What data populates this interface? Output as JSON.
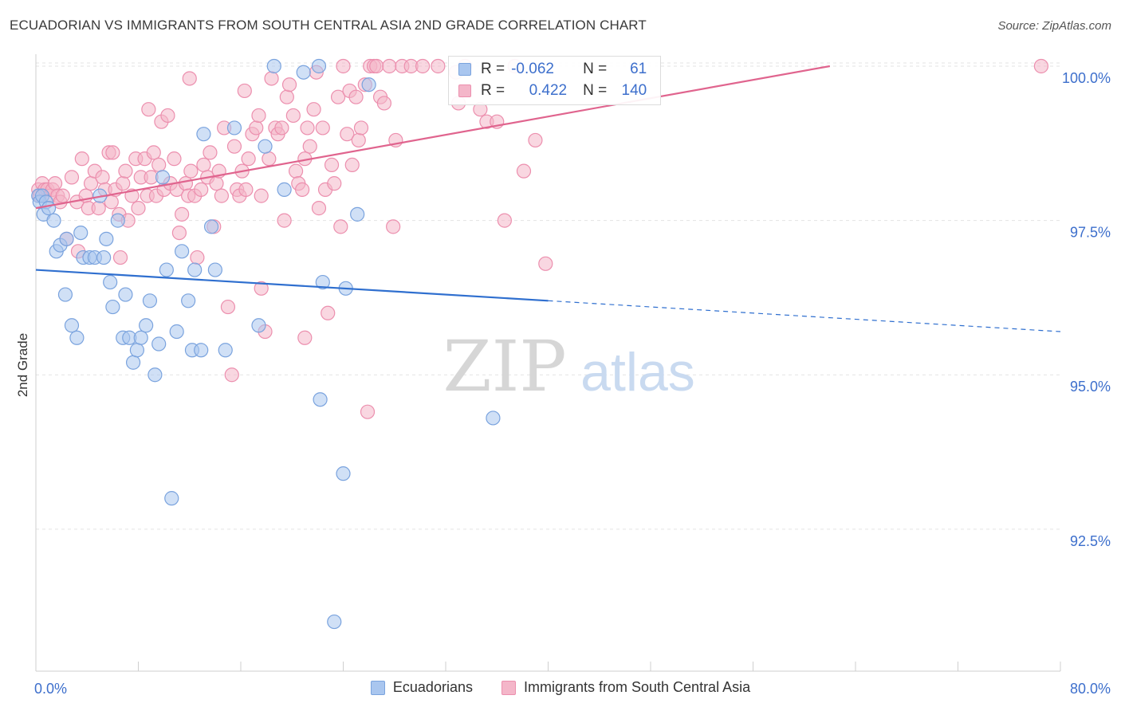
{
  "title": "ECUADORIAN VS IMMIGRANTS FROM SOUTH CENTRAL ASIA 2ND GRADE CORRELATION CHART",
  "source": "Source: ZipAtlas.com",
  "watermark": {
    "zip": "ZIP",
    "atlas": "atlas"
  },
  "colors": {
    "blue_fill": "#a9c6ef",
    "blue_stroke": "#7aa3de",
    "blue_line": "#2f6fcf",
    "pink_fill": "#f4b6c9",
    "pink_stroke": "#ec8fae",
    "pink_line": "#e0648e",
    "axis_label": "#3d6fcc",
    "grid": "#e3e3e3"
  },
  "legend_top": {
    "rows": [
      {
        "series": "Ecuadorians",
        "r_label": "R =",
        "r_value": "-0.062",
        "n_label": "N =",
        "n_value": "61"
      },
      {
        "series": "Immigrants from South Central Asia",
        "r_label": "R =",
        "r_value": "0.422",
        "n_label": "N =",
        "n_value": "140"
      }
    ]
  },
  "legend_bottom": [
    "Ecuadorians",
    "Immigrants from South Central Asia"
  ],
  "chart_data": {
    "type": "scatter",
    "title": "ECUADORIAN VS IMMIGRANTS FROM SOUTH CENTRAL ASIA 2ND GRADE CORRELATION CHART",
    "xlabel": "",
    "ylabel": "2nd Grade",
    "xlim": [
      0,
      80
    ],
    "ylim": [
      90.2,
      100.4
    ],
    "x_tick_labels": [
      "0.0%",
      "80.0%"
    ],
    "y_ticks": [
      92.5,
      95.0,
      97.5,
      100.0
    ],
    "y_tick_labels": [
      "92.5%",
      "95.0%",
      "97.5%",
      "100.0%"
    ],
    "grid": true,
    "legend_position": "bottom",
    "series": [
      {
        "name": "Ecuadorians",
        "trend": {
          "x": [
            0,
            40
          ],
          "y": [
            96.7,
            96.2
          ],
          "dashed_to": [
            80,
            95.7
          ]
        },
        "points": [
          [
            0.2,
            97.9
          ],
          [
            0.3,
            97.8
          ],
          [
            0.5,
            97.9
          ],
          [
            0.6,
            97.6
          ],
          [
            0.8,
            97.8
          ],
          [
            1.0,
            97.7
          ],
          [
            1.4,
            97.5
          ],
          [
            1.6,
            97.0
          ],
          [
            1.9,
            97.1
          ],
          [
            2.4,
            97.2
          ],
          [
            2.3,
            96.3
          ],
          [
            2.8,
            95.8
          ],
          [
            3.2,
            95.6
          ],
          [
            3.5,
            97.3
          ],
          [
            3.7,
            96.9
          ],
          [
            4.2,
            96.9
          ],
          [
            4.6,
            96.9
          ],
          [
            5.0,
            97.9
          ],
          [
            5.3,
            96.9
          ],
          [
            5.5,
            97.2
          ],
          [
            5.8,
            96.5
          ],
          [
            6.0,
            96.1
          ],
          [
            6.4,
            97.5
          ],
          [
            6.8,
            95.6
          ],
          [
            7.0,
            96.3
          ],
          [
            7.3,
            95.6
          ],
          [
            7.6,
            95.2
          ],
          [
            7.9,
            95.4
          ],
          [
            8.2,
            95.6
          ],
          [
            8.6,
            95.8
          ],
          [
            8.9,
            96.2
          ],
          [
            9.3,
            95.0
          ],
          [
            9.6,
            95.5
          ],
          [
            9.9,
            98.2
          ],
          [
            10.2,
            96.7
          ],
          [
            10.6,
            93.0
          ],
          [
            11.0,
            95.7
          ],
          [
            11.4,
            97.0
          ],
          [
            11.9,
            96.2
          ],
          [
            12.2,
            95.4
          ],
          [
            12.4,
            96.7
          ],
          [
            12.9,
            95.4
          ],
          [
            13.1,
            98.9
          ],
          [
            13.7,
            97.4
          ],
          [
            14.0,
            96.7
          ],
          [
            14.8,
            95.4
          ],
          [
            15.5,
            99.0
          ],
          [
            17.4,
            95.8
          ],
          [
            17.9,
            98.7
          ],
          [
            18.6,
            100.0
          ],
          [
            19.4,
            98.0
          ],
          [
            20.9,
            99.9
          ],
          [
            22.1,
            100.0
          ],
          [
            22.4,
            96.5
          ],
          [
            22.2,
            94.6
          ],
          [
            23.3,
            91.0
          ],
          [
            24.0,
            93.4
          ],
          [
            24.2,
            96.4
          ],
          [
            25.1,
            97.6
          ],
          [
            26.0,
            99.7
          ],
          [
            35.7,
            94.3
          ]
        ]
      },
      {
        "name": "Immigrants from South Central Asia",
        "trend": {
          "x": [
            0,
            62
          ],
          "y": [
            97.7,
            100.0
          ]
        },
        "points": [
          [
            0.2,
            98.0
          ],
          [
            0.3,
            97.9
          ],
          [
            0.5,
            98.1
          ],
          [
            0.7,
            98.0
          ],
          [
            0.9,
            98.0
          ],
          [
            1.1,
            97.9
          ],
          [
            1.3,
            98.0
          ],
          [
            1.5,
            98.1
          ],
          [
            1.7,
            97.9
          ],
          [
            1.9,
            97.8
          ],
          [
            2.1,
            97.9
          ],
          [
            2.4,
            97.2
          ],
          [
            2.8,
            98.2
          ],
          [
            3.2,
            97.8
          ],
          [
            3.3,
            97.0
          ],
          [
            3.6,
            98.5
          ],
          [
            3.9,
            97.9
          ],
          [
            4.1,
            97.7
          ],
          [
            4.3,
            98.1
          ],
          [
            4.6,
            98.3
          ],
          [
            4.9,
            97.7
          ],
          [
            5.2,
            98.2
          ],
          [
            5.4,
            98.0
          ],
          [
            5.7,
            98.6
          ],
          [
            5.9,
            97.8
          ],
          [
            6.2,
            98.0
          ],
          [
            6.5,
            97.6
          ],
          [
            6.6,
            96.9
          ],
          [
            6.8,
            98.1
          ],
          [
            7.0,
            98.3
          ],
          [
            7.2,
            97.5
          ],
          [
            7.5,
            97.9
          ],
          [
            7.8,
            98.5
          ],
          [
            8.0,
            97.7
          ],
          [
            8.2,
            98.2
          ],
          [
            8.5,
            98.5
          ],
          [
            8.7,
            97.9
          ],
          [
            9.0,
            98.2
          ],
          [
            9.2,
            98.6
          ],
          [
            9.4,
            97.9
          ],
          [
            9.6,
            98.4
          ],
          [
            9.8,
            99.1
          ],
          [
            10.0,
            98.0
          ],
          [
            10.3,
            99.2
          ],
          [
            10.5,
            98.1
          ],
          [
            10.8,
            98.5
          ],
          [
            11.0,
            98.0
          ],
          [
            11.2,
            97.3
          ],
          [
            11.4,
            97.6
          ],
          [
            11.7,
            98.1
          ],
          [
            11.9,
            97.9
          ],
          [
            12.1,
            98.3
          ],
          [
            12.4,
            97.9
          ],
          [
            12.6,
            96.9
          ],
          [
            12.9,
            98.0
          ],
          [
            13.1,
            98.4
          ],
          [
            13.4,
            98.2
          ],
          [
            13.6,
            98.6
          ],
          [
            13.9,
            97.4
          ],
          [
            14.1,
            98.1
          ],
          [
            14.3,
            98.3
          ],
          [
            14.5,
            97.9
          ],
          [
            14.7,
            99.0
          ],
          [
            15.0,
            96.1
          ],
          [
            15.3,
            95.0
          ],
          [
            15.5,
            98.7
          ],
          [
            15.7,
            98.0
          ],
          [
            15.9,
            97.9
          ],
          [
            16.1,
            98.3
          ],
          [
            16.4,
            98.0
          ],
          [
            16.6,
            98.5
          ],
          [
            16.9,
            98.9
          ],
          [
            17.2,
            99.0
          ],
          [
            17.4,
            99.2
          ],
          [
            17.6,
            97.9
          ],
          [
            17.9,
            95.7
          ],
          [
            18.2,
            98.5
          ],
          [
            18.4,
            99.8
          ],
          [
            18.7,
            99.0
          ],
          [
            18.9,
            98.9
          ],
          [
            19.2,
            99.0
          ],
          [
            19.4,
            97.5
          ],
          [
            19.6,
            99.5
          ],
          [
            19.8,
            99.7
          ],
          [
            20.1,
            99.2
          ],
          [
            20.3,
            98.3
          ],
          [
            20.5,
            98.1
          ],
          [
            20.8,
            98.0
          ],
          [
            21.0,
            98.5
          ],
          [
            21.2,
            99.0
          ],
          [
            21.4,
            98.7
          ],
          [
            21.7,
            99.3
          ],
          [
            21.9,
            99.9
          ],
          [
            22.1,
            97.7
          ],
          [
            22.4,
            99.0
          ],
          [
            22.6,
            98.0
          ],
          [
            22.8,
            96.0
          ],
          [
            23.1,
            98.4
          ],
          [
            23.3,
            98.1
          ],
          [
            23.6,
            99.5
          ],
          [
            23.8,
            97.4
          ],
          [
            24.0,
            100.0
          ],
          [
            24.3,
            98.9
          ],
          [
            24.5,
            99.6
          ],
          [
            24.7,
            98.4
          ],
          [
            25.0,
            99.5
          ],
          [
            25.2,
            98.8
          ],
          [
            25.4,
            99.0
          ],
          [
            25.7,
            99.7
          ],
          [
            25.9,
            94.4
          ],
          [
            26.1,
            100.0
          ],
          [
            26.4,
            100.0
          ],
          [
            26.6,
            100.0
          ],
          [
            26.9,
            99.5
          ],
          [
            27.2,
            99.4
          ],
          [
            27.6,
            100.0
          ],
          [
            28.1,
            98.8
          ],
          [
            28.6,
            100.0
          ],
          [
            29.3,
            100.0
          ],
          [
            30.2,
            100.0
          ],
          [
            31.4,
            100.0
          ],
          [
            32.8,
            99.9
          ],
          [
            33.5,
            100.0
          ],
          [
            34.7,
            99.3
          ],
          [
            35.2,
            99.1
          ],
          [
            36.0,
            99.1
          ],
          [
            36.6,
            97.5
          ],
          [
            37.4,
            100.0
          ],
          [
            38.1,
            98.3
          ],
          [
            39.0,
            98.8
          ],
          [
            39.8,
            96.8
          ],
          [
            78.5,
            100.0
          ],
          [
            6.0,
            98.6
          ],
          [
            8.8,
            99.3
          ],
          [
            12.0,
            99.8
          ],
          [
            21.0,
            95.6
          ],
          [
            16.3,
            99.6
          ],
          [
            17.6,
            96.4
          ],
          [
            27.9,
            97.4
          ],
          [
            33.0,
            99.4
          ]
        ]
      }
    ]
  }
}
